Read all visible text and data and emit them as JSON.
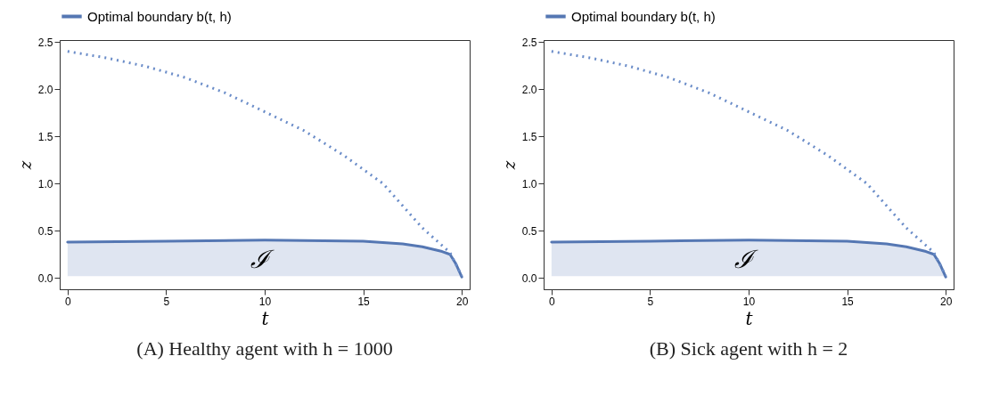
{
  "chart_data": [
    {
      "type": "line",
      "title": "(A) Healthy agent with h = 1000",
      "xlabel": "t",
      "ylabel": "z",
      "xlim": [
        -0.4,
        20.4
      ],
      "ylim": [
        -0.12,
        2.52
      ],
      "xticks": [
        0,
        5,
        10,
        15,
        20
      ],
      "yticks": [
        {
          "value": 0,
          "label": "0.0"
        },
        {
          "value": 0.5,
          "label": "0.5"
        },
        {
          "value": 1,
          "label": "1.0"
        },
        {
          "value": 1.5,
          "label": "1.5"
        },
        {
          "value": 2,
          "label": "2.0"
        },
        {
          "value": 2.5,
          "label": "2.5"
        }
      ],
      "grid": false,
      "legend": "top",
      "annotations": [
        "ℐ"
      ],
      "series": [
        {
          "name": "Optimal boundary b(t, h)",
          "color": "#5577b3",
          "line_style": "solid",
          "x": [
            0,
            5,
            10,
            15,
            17,
            18,
            19,
            19.4,
            19.7,
            20
          ],
          "values": [
            0.38,
            0.39,
            0.4,
            0.39,
            0.36,
            0.33,
            0.28,
            0.25,
            0.15,
            0.01
          ],
          "lower": [
            0.02,
            0.02,
            0.02,
            0.02,
            0.02,
            0.02,
            0.02,
            0.02,
            0.02,
            0.02
          ],
          "upper": [
            0.38,
            0.39,
            0.4,
            0.39,
            0.36,
            0.33,
            0.28,
            0.25,
            0.15,
            0.02
          ]
        },
        {
          "color": "#6a8cc8",
          "line_style": "dotted",
          "x": [
            0,
            2,
            4,
            6,
            8,
            10,
            12,
            14,
            16,
            18,
            19.4,
            20
          ],
          "values": [
            2.4,
            2.33,
            2.24,
            2.12,
            1.96,
            1.76,
            1.56,
            1.3,
            1.0,
            0.53,
            0.27,
            0.02
          ]
        }
      ]
    },
    {
      "type": "line",
      "title": "(B) Sick agent with h = 2",
      "xlabel": "t",
      "ylabel": "z",
      "xlim": [
        -0.4,
        20.4
      ],
      "ylim": [
        -0.12,
        2.52
      ],
      "xticks": [
        0,
        5,
        10,
        15,
        20
      ],
      "yticks": [
        {
          "value": 0,
          "label": "0.0"
        },
        {
          "value": 0.5,
          "label": "0.5"
        },
        {
          "value": 1,
          "label": "1.0"
        },
        {
          "value": 1.5,
          "label": "1.5"
        },
        {
          "value": 2,
          "label": "2.0"
        },
        {
          "value": 2.5,
          "label": "2.5"
        }
      ],
      "grid": false,
      "legend": "top",
      "annotations": [
        "ℐ"
      ],
      "series": [
        {
          "name": "Optimal boundary b(t, h)",
          "color": "#5577b3",
          "line_style": "solid",
          "x": [
            0,
            5,
            10,
            15,
            17,
            18,
            19,
            19.4,
            19.7,
            20
          ],
          "values": [
            0.38,
            0.39,
            0.4,
            0.39,
            0.36,
            0.33,
            0.28,
            0.25,
            0.15,
            0.01
          ],
          "lower": [
            0.02,
            0.02,
            0.02,
            0.02,
            0.02,
            0.02,
            0.02,
            0.02,
            0.02,
            0.02
          ],
          "upper": [
            0.38,
            0.39,
            0.4,
            0.39,
            0.36,
            0.33,
            0.28,
            0.25,
            0.15,
            0.02
          ]
        },
        {
          "color": "#6a8cc8",
          "line_style": "dotted",
          "x": [
            0,
            2,
            4,
            6,
            8,
            10,
            12,
            14,
            16,
            18,
            19.4,
            20
          ],
          "values": [
            2.4,
            2.33,
            2.24,
            2.12,
            1.96,
            1.76,
            1.56,
            1.3,
            1.0,
            0.53,
            0.27,
            0.02
          ]
        }
      ]
    }
  ]
}
